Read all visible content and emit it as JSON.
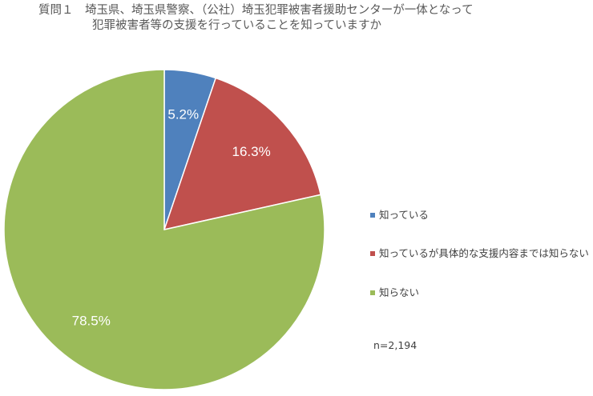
{
  "title": {
    "line1": "質問１　埼玉県、埼玉県警察、（公社）埼玉犯罪被害者援助センターが一体となって",
    "line2": "犯罪被害者等の支援を行っていることを知っていますか"
  },
  "note": "n=2,194",
  "chart_data": {
    "type": "pie",
    "title": "質問１　埼玉県、埼玉県警察、（公社）埼玉犯罪被害者援助センターが一体となって犯罪被害者等の支援を行っていることを知っていますか",
    "unit": "%",
    "start_angle": "12 o'clock",
    "direction": "clockwise",
    "legend_position": "right",
    "slices": [
      {
        "label": "知っている",
        "value": 5.2,
        "display": "5.2%",
        "color": "#4f81bd"
      },
      {
        "label": "知っているが具体的な支援内容までは知らない",
        "value": 16.3,
        "display": "16.3%",
        "color": "#c0504d"
      },
      {
        "label": "知らない",
        "value": 78.5,
        "display": "78.5%",
        "color": "#9bbb59"
      }
    ]
  }
}
